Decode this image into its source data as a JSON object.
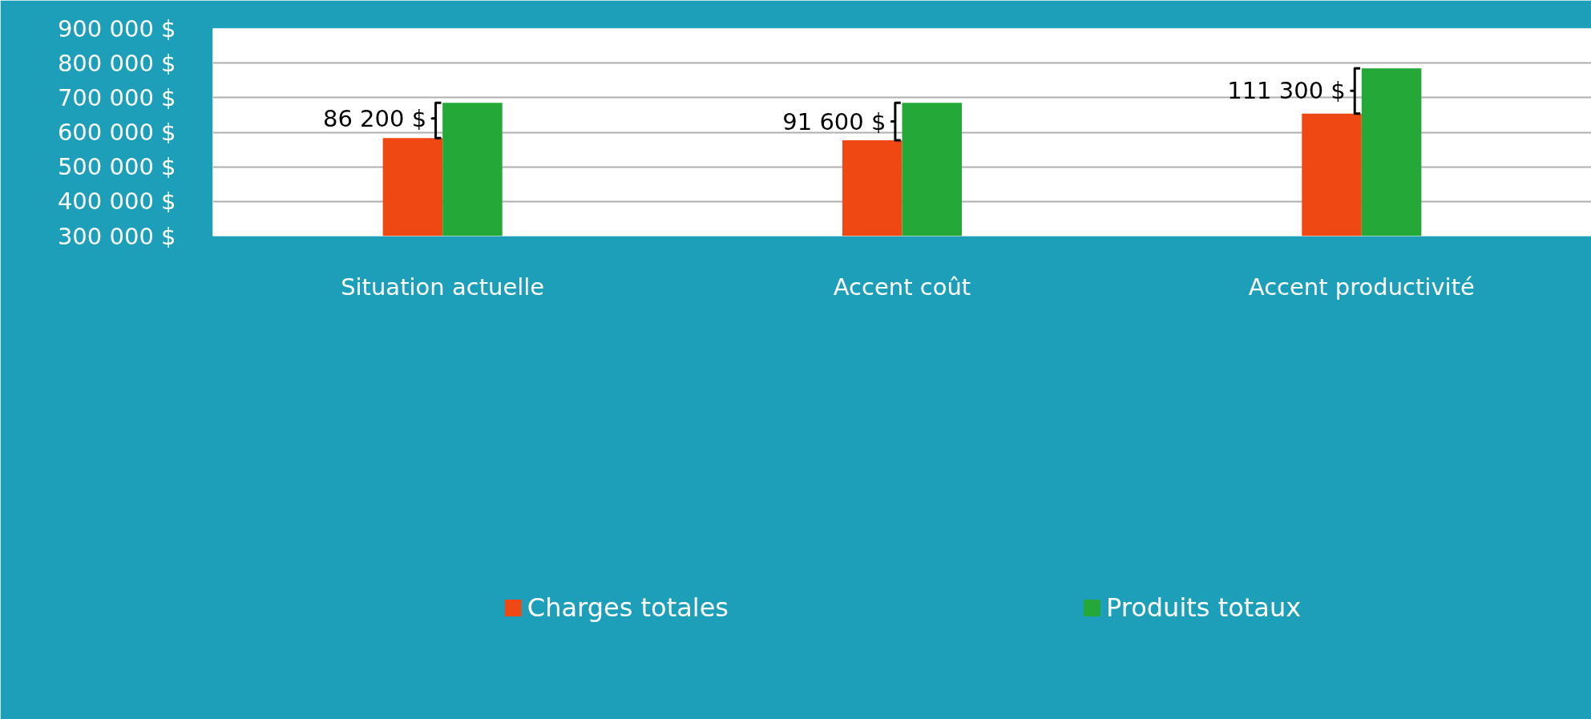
{
  "chart_data": {
    "type": "bar",
    "categories": [
      "Situation actuelle",
      "Accent coût",
      "Accent productivité"
    ],
    "series": [
      {
        "name": "Charges totales",
        "color": "#f04812",
        "values": [
          583000,
          577000,
          654000
        ]
      },
      {
        "name": "Produits totaux",
        "color": "#24a838",
        "values": [
          685000,
          685000,
          785000
        ]
      }
    ],
    "ylim": [
      300000,
      900000
    ],
    "yticks": [
      {
        "value": 300000,
        "label": "300 000 $"
      },
      {
        "value": 400000,
        "label": "400 000 $"
      },
      {
        "value": 500000,
        "label": "500 000 $"
      },
      {
        "value": 600000,
        "label": "600 000 $"
      },
      {
        "value": 700000,
        "label": "700 000 $"
      },
      {
        "value": 800000,
        "label": "800 000 $"
      },
      {
        "value": 900000,
        "label": "900 000 $"
      }
    ],
    "annotations": [
      {
        "text": "86 200 $",
        "x": "Situation actuelle",
        "y": 640000
      },
      {
        "text": "91 600 $",
        "x": "Accent coût",
        "y": 631000
      },
      {
        "text": "111 300 $",
        "x": "Accent productivité",
        "y": 720000
      }
    ],
    "grid": "y",
    "legend": "bottom"
  }
}
